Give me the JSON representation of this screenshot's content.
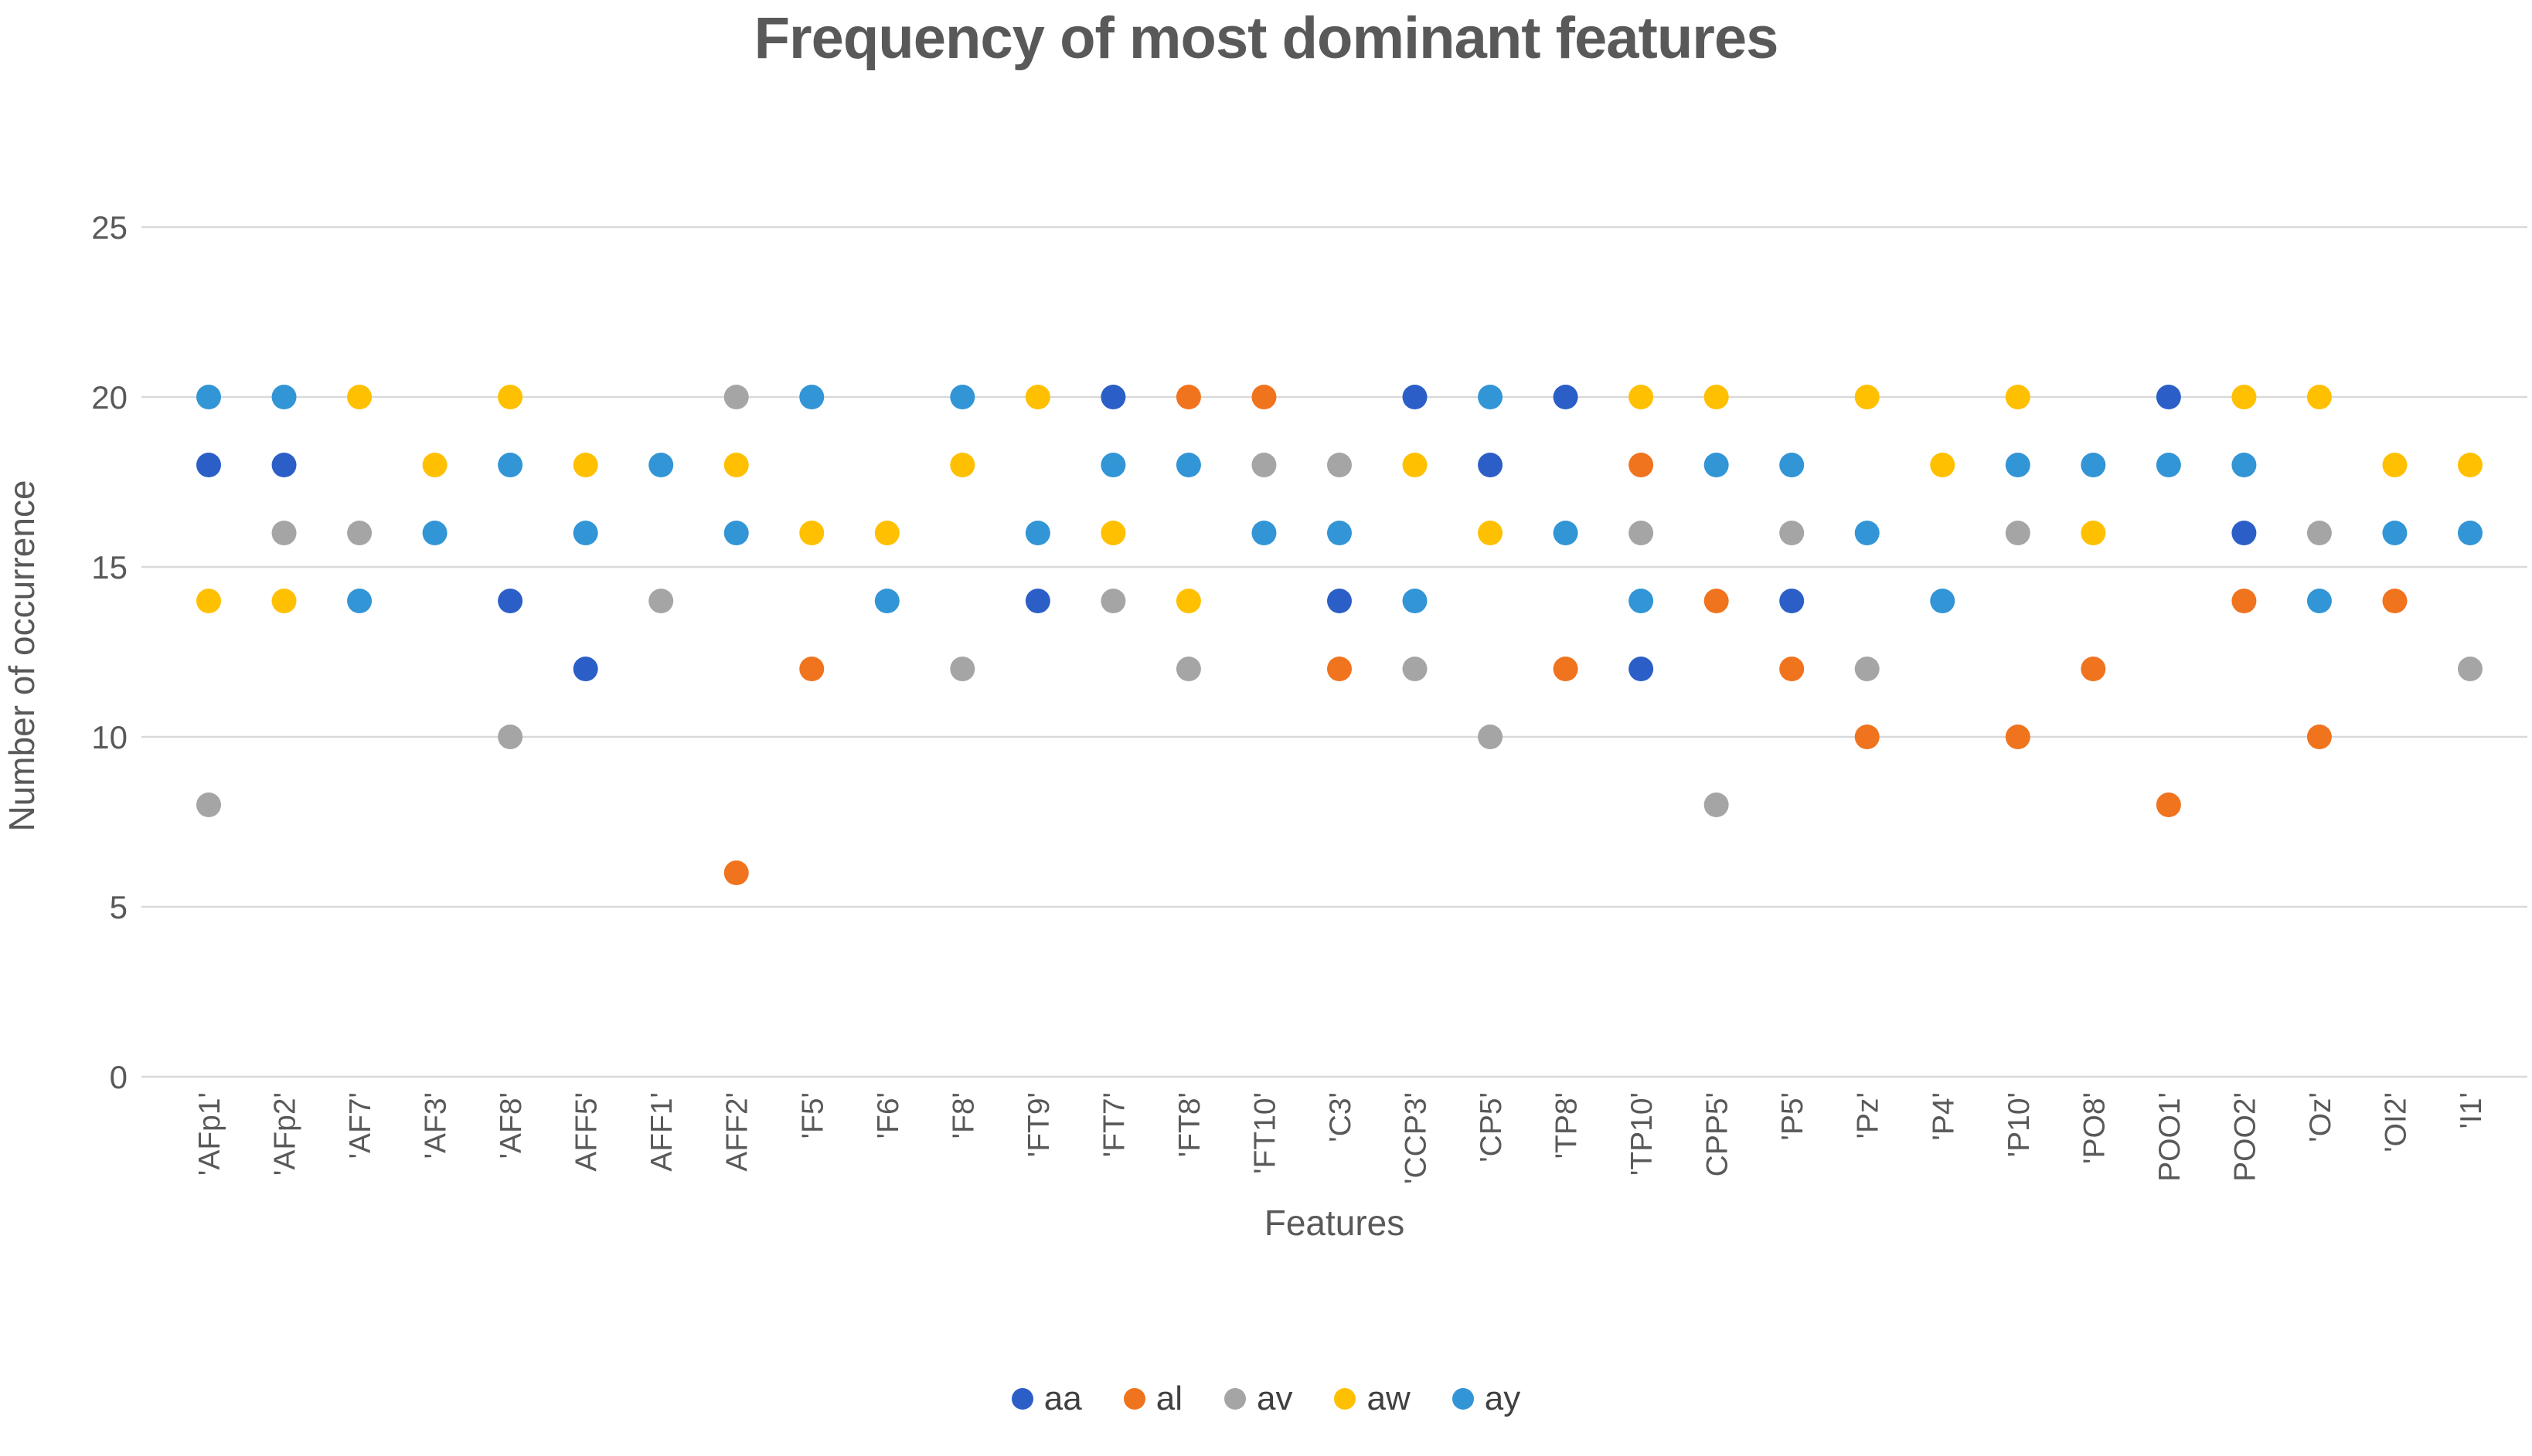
{
  "title": "Frequency of most dominant features",
  "axes": {
    "x_title": "Features",
    "y_title": "Number of occurrence"
  },
  "colors": {
    "grid": "#D9D9D9",
    "tick_text": "#595959",
    "title_text": "#595959",
    "legend_text": "#404040",
    "background": "#FFFFFF"
  },
  "chart_data": {
    "type": "scatter",
    "title": "Frequency of most dominant features",
    "xlabel": "Features",
    "ylabel": "Number of occurrence",
    "ylim": [
      0,
      25
    ],
    "y_ticks": [
      0,
      5,
      10,
      15,
      20,
      25
    ],
    "grid": true,
    "legend_position": "bottom",
    "categories": [
      "'AFp1'",
      "'AFp2'",
      "'AF7'",
      "'AF3'",
      "'AF8'",
      "AFF5'",
      "AFF1'",
      "AFF2'",
      "'F5'",
      "'F6'",
      "'F8'",
      "'FT9'",
      "'FT7'",
      "'FT8'",
      "'FT10'",
      "'C3'",
      "'CCP3'",
      "'CP5'",
      "'TP8'",
      "'TP10'",
      "CPP5'",
      "'P5'",
      "'Pz'",
      "'P4'",
      "'P10'",
      "'PO8'",
      "POO1'",
      "POO2'",
      "'Oz'",
      "'OI2'",
      "'I1'"
    ],
    "series": [
      {
        "name": "aa",
        "color": "#2B5FC7",
        "values": [
          18,
          18,
          null,
          null,
          14,
          12,
          null,
          null,
          null,
          null,
          null,
          14,
          20,
          null,
          null,
          14,
          20,
          18,
          20,
          12,
          null,
          14,
          null,
          null,
          null,
          null,
          20,
          16,
          null,
          null,
          null
        ]
      },
      {
        "name": "al",
        "color": "#F0731E",
        "values": [
          null,
          null,
          null,
          null,
          null,
          null,
          null,
          6,
          12,
          null,
          null,
          null,
          null,
          20,
          20,
          12,
          null,
          null,
          12,
          18,
          14,
          12,
          10,
          null,
          10,
          12,
          8,
          14,
          10,
          14,
          null
        ]
      },
      {
        "name": "av",
        "color": "#A5A5A5",
        "values": [
          8,
          16,
          16,
          null,
          10,
          null,
          14,
          20,
          null,
          null,
          12,
          null,
          14,
          12,
          18,
          18,
          12,
          10,
          null,
          16,
          8,
          16,
          12,
          null,
          16,
          null,
          null,
          null,
          16,
          null,
          12
        ]
      },
      {
        "name": "aw",
        "color": "#FFC001",
        "values": [
          14,
          14,
          20,
          18,
          20,
          18,
          null,
          18,
          16,
          16,
          18,
          20,
          16,
          14,
          null,
          null,
          18,
          16,
          null,
          20,
          20,
          null,
          20,
          18,
          20,
          16,
          null,
          20,
          20,
          18,
          18
        ]
      },
      {
        "name": "ay",
        "color": "#3295D6",
        "values": [
          20,
          20,
          14,
          16,
          18,
          16,
          18,
          16,
          20,
          14,
          20,
          16,
          18,
          18,
          16,
          16,
          14,
          20,
          16,
          14,
          18,
          18,
          16,
          14,
          18,
          18,
          18,
          18,
          14,
          16,
          16
        ]
      }
    ]
  }
}
